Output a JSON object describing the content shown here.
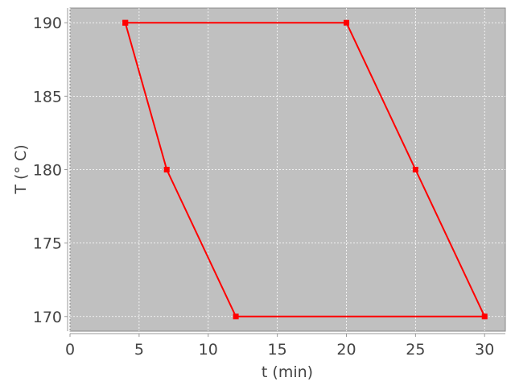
{
  "chart_data": {
    "type": "line",
    "title": "",
    "xlabel": "t (min)",
    "ylabel": "T (° C)",
    "xlim": [
      0,
      31.5
    ],
    "ylim": [
      169,
      191
    ],
    "xticks": [
      0,
      5,
      10,
      15,
      20,
      25,
      30
    ],
    "yticks": [
      170,
      175,
      180,
      185,
      190
    ],
    "grid": true,
    "legend": "none",
    "colors": {
      "series": "#ff0000",
      "plot_background": "#c0c0c0",
      "grid": "#ffffff"
    },
    "series": [
      {
        "x": [
          4,
          20,
          25,
          30,
          12,
          7,
          4
        ],
        "y": [
          190,
          190,
          180,
          170,
          170,
          180,
          190
        ],
        "marker": "square"
      }
    ]
  }
}
